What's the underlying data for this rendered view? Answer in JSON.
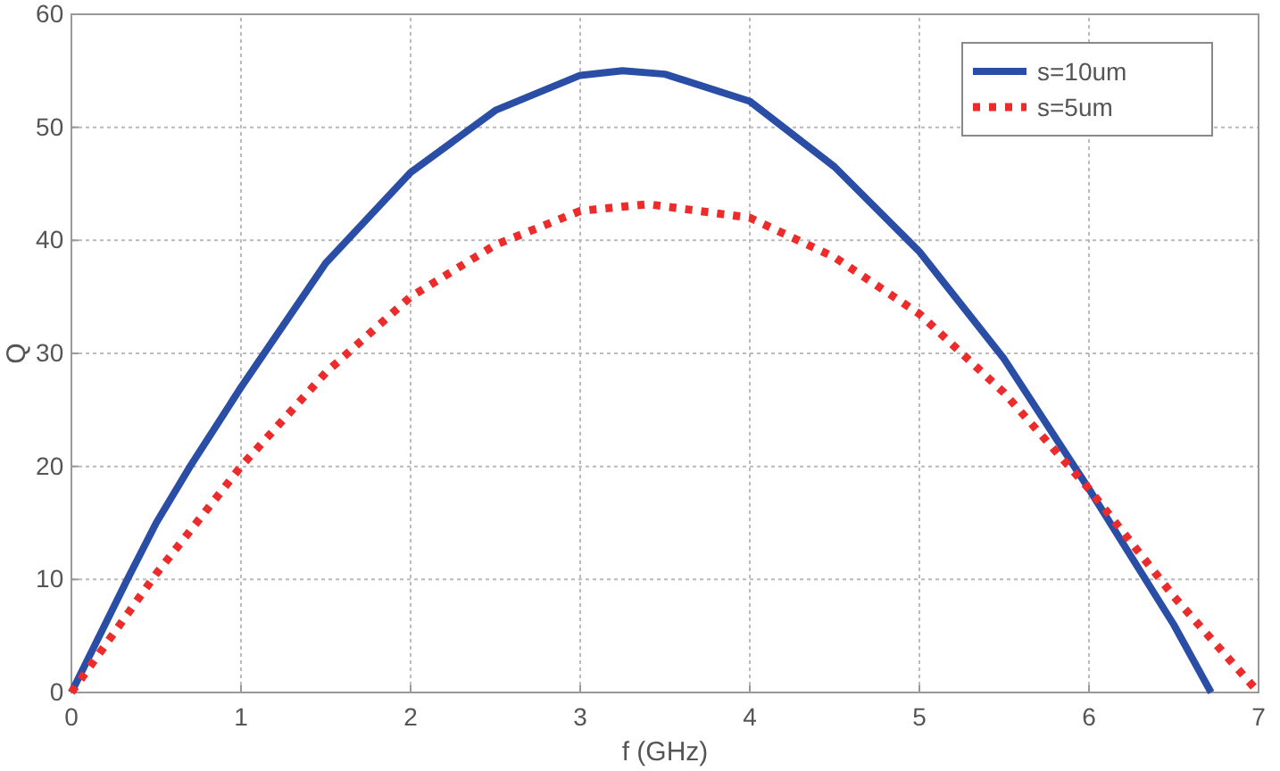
{
  "chart_data": {
    "type": "line",
    "xlabel": "f (GHz)",
    "ylabel": "Q",
    "xlim": [
      0,
      7
    ],
    "xticks": [
      0,
      1,
      2,
      3,
      4,
      5,
      6,
      7
    ],
    "ylim": [
      0,
      60
    ],
    "yticks": [
      0,
      10,
      20,
      30,
      40,
      50,
      60
    ],
    "grid": true,
    "legend": "top right",
    "series": [
      {
        "name": "s=10um",
        "color": "#2a4ea6",
        "line_style": "solid",
        "x": [
          0,
          0.33,
          0.5,
          0.7,
          1,
          1.5,
          2,
          2.5,
          3,
          3.25,
          3.5,
          4,
          4.5,
          5,
          5.5,
          6,
          6.5,
          6.72
        ],
        "values": [
          0,
          10,
          15,
          20,
          27,
          38,
          46,
          51.5,
          54.6,
          55,
          54.7,
          52.3,
          46.5,
          39,
          29.5,
          18,
          6,
          0
        ]
      },
      {
        "name": "s=5um",
        "color": "#ee2b2b",
        "line_style": "dotted",
        "x": [
          0,
          0.5,
          1,
          1.5,
          2,
          2.5,
          3,
          3.4,
          4,
          4.5,
          5,
          5.5,
          6,
          6.5,
          7
        ],
        "values": [
          0,
          10.5,
          20,
          28.3,
          35,
          39.6,
          42.6,
          43.2,
          42,
          38.5,
          33.5,
          26.5,
          18,
          8.5,
          0
        ]
      }
    ]
  }
}
